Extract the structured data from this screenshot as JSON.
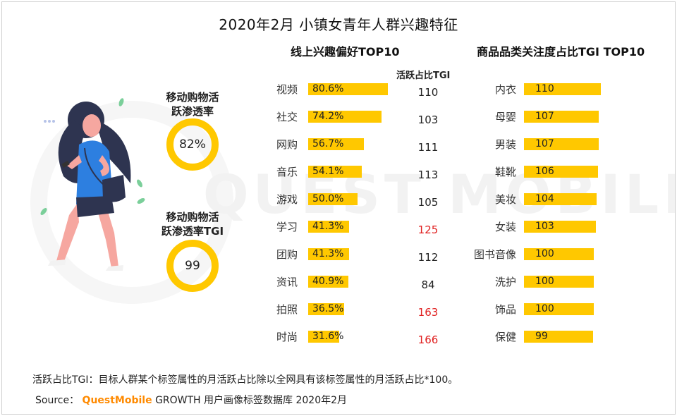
{
  "title": "2020年2月 小镇女青年人群兴趣特征",
  "online_subtitle": "线上兴趣偏好TOP10",
  "category_subtitle": "商品品类关注度占比TGI TOP10",
  "tgi_header": "活跃占比TGI",
  "metrics": [
    {
      "label_line1": "移动购物活",
      "label_line2": "跃渗透率",
      "value": "82%"
    },
    {
      "label_line1": "移动购物活",
      "label_line2": "跃渗透率TGI",
      "value": "99"
    }
  ],
  "watermark": "QUEST MOBILE",
  "colors": {
    "bar": "#ffc800",
    "highlight": "#e02020",
    "brand": "#ff8a00"
  },
  "chart_data": [
    {
      "type": "bar",
      "orientation": "horizontal",
      "title": "线上兴趣偏好TOP10",
      "categories": [
        "视频",
        "社交",
        "网购",
        "音乐",
        "游戏",
        "学习",
        "团购",
        "资讯",
        "拍照",
        "时尚"
      ],
      "values": [
        80.6,
        74.2,
        56.7,
        54.1,
        50.0,
        41.3,
        41.3,
        40.9,
        36.5,
        31.6
      ],
      "value_labels": [
        "80.6%",
        "74.2%",
        "56.7%",
        "54.1%",
        "50.0%",
        "41.3%",
        "41.3%",
        "40.9%",
        "36.5%",
        "31.6%"
      ],
      "tgi": [
        110,
        103,
        111,
        113,
        105,
        125,
        112,
        84,
        163,
        166
      ],
      "tgi_highlight": [
        false,
        false,
        false,
        false,
        false,
        true,
        false,
        false,
        true,
        true
      ]
    },
    {
      "type": "bar",
      "orientation": "horizontal",
      "title": "商品品类关注度占比TGI TOP10",
      "categories": [
        "内衣",
        "母婴",
        "男装",
        "鞋靴",
        "美妆",
        "女装",
        "图书音像",
        "洗护",
        "饰品",
        "保健"
      ],
      "values": [
        110,
        107,
        107,
        106,
        104,
        103,
        100,
        100,
        100,
        99
      ],
      "value_labels": [
        "110",
        "107",
        "107",
        "106",
        "104",
        "103",
        "100",
        "100",
        "100",
        "99"
      ]
    }
  ],
  "footnote": "活跃占比TGI：目标人群某个标签属性的月活跃占比除以全网具有该标签属性的月活跃占比*100。",
  "source": {
    "prefix": "Source：",
    "brand": "QuestMobile",
    "rest": " GROWTH 用户画像标签数据库 2020年2月"
  }
}
